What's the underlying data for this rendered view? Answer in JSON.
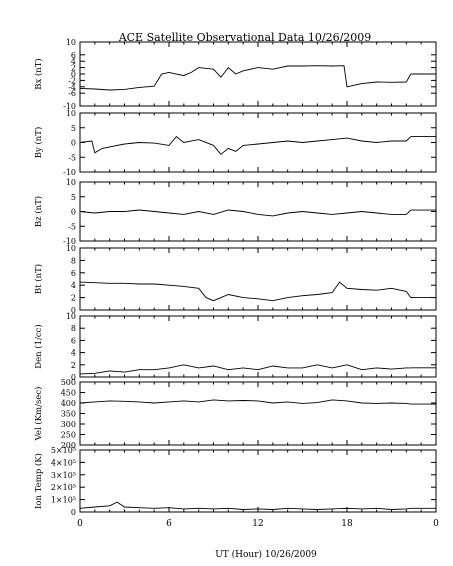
{
  "title": "ACE Satellite Observational Data   10/26/2009",
  "xlabel": "UT (Hour)   10/26/2009",
  "chart_data": {
    "type": "line",
    "title": "ACE Satellite Observational Data   10/26/2009",
    "xlabel": "UT (Hour)   10/26/2009",
    "x_ticks": [
      "0",
      "6",
      "12",
      "18",
      "0"
    ],
    "x_range": [
      0,
      24
    ],
    "data_end_hour": 22.3,
    "line_color": "#000000",
    "panels": [
      {
        "ylabel": "Bx (nT)",
        "ylim": [
          -10,
          10
        ],
        "ticks": [
          "-10",
          "-6",
          "-4",
          "-2",
          "0",
          "2",
          "4",
          "6",
          "10"
        ],
        "tick_values": [
          -10,
          -6,
          -4,
          -2,
          0,
          2,
          4,
          6,
          10
        ],
        "hours": [
          0,
          1,
          2,
          3,
          4,
          5,
          5.5,
          6,
          7,
          7.5,
          8,
          9,
          9.5,
          10,
          10.5,
          11,
          12,
          13,
          14,
          15,
          16,
          17,
          17.8,
          18,
          19,
          20,
          21,
          22,
          22.3
        ],
        "values": [
          -4.5,
          -4.7,
          -5,
          -4.8,
          -4.2,
          -3.8,
          0,
          0.5,
          -0.5,
          0.5,
          2,
          1.5,
          -1,
          2,
          0,
          1,
          2,
          1.5,
          2.5,
          2.5,
          2.6,
          2.5,
          2.6,
          -4,
          -3,
          -2.5,
          -2.6,
          -2.5,
          0
        ]
      },
      {
        "ylabel": "By (nT)",
        "ylim": [
          -10,
          10
        ],
        "ticks": [
          "-10",
          "-5",
          "0",
          "5",
          "10"
        ],
        "tick_values": [
          -10,
          -5,
          0,
          5,
          10
        ],
        "hours": [
          0,
          0.8,
          1,
          1.5,
          2,
          3,
          4,
          5,
          6,
          6.5,
          7,
          8,
          9,
          9.5,
          10,
          10.5,
          11,
          12,
          13,
          14,
          15,
          16,
          17,
          18,
          19,
          20,
          21,
          22,
          22.3
        ],
        "values": [
          0,
          0.5,
          -3.5,
          -2,
          -1.5,
          -0.5,
          0,
          -0.2,
          -1,
          2,
          0,
          1,
          -1,
          -4,
          -2,
          -3,
          -1,
          -0.5,
          0,
          0.5,
          0,
          0.5,
          1,
          1.5,
          0.5,
          0,
          0.5,
          0.5,
          2
        ]
      },
      {
        "ylabel": "Bz (nT)",
        "ylim": [
          -10,
          10
        ],
        "ticks": [
          "-10",
          "-5",
          "0",
          "5",
          "10"
        ],
        "tick_values": [
          -10,
          -5,
          0,
          5,
          10
        ],
        "hours": [
          0,
          1,
          2,
          3,
          4,
          5,
          6,
          7,
          8,
          9,
          10,
          11,
          12,
          13,
          14,
          15,
          16,
          17,
          18,
          19,
          20,
          21,
          22,
          22.3
        ],
        "values": [
          0,
          -0.5,
          0,
          0,
          0.5,
          0,
          -0.5,
          -1,
          0,
          -1,
          0.5,
          0,
          -1,
          -1.5,
          -0.5,
          0,
          -0.5,
          -1,
          -0.5,
          0,
          -0.5,
          -1,
          -1,
          0.5
        ]
      },
      {
        "ylabel": "Bt (nT)",
        "ylim": [
          0,
          10
        ],
        "ticks": [
          "0",
          "2",
          "4",
          "6",
          "8",
          "10"
        ],
        "tick_values": [
          0,
          2,
          4,
          6,
          8,
          10
        ],
        "hours": [
          0,
          1,
          2,
          3,
          4,
          5,
          6,
          7,
          8,
          8.5,
          9,
          10,
          11,
          12,
          13,
          14,
          15,
          16,
          17,
          17.5,
          18,
          19,
          20,
          21,
          22,
          22.3
        ],
        "values": [
          4.5,
          4.4,
          4.3,
          4.3,
          4.2,
          4.2,
          4,
          3.8,
          3.5,
          2,
          1.5,
          2.5,
          2,
          1.8,
          1.5,
          2,
          2.3,
          2.5,
          2.8,
          4.5,
          3.5,
          3.3,
          3.2,
          3.5,
          3,
          2
        ]
      },
      {
        "ylabel": "Den (1/cc)",
        "ylim": [
          0,
          10
        ],
        "ticks": [
          "0",
          "2",
          "4",
          "6",
          "8",
          "10"
        ],
        "tick_values": [
          0,
          2,
          4,
          6,
          8,
          10
        ],
        "hours": [
          0,
          1,
          2,
          3,
          4,
          5,
          6,
          7,
          8,
          9,
          10,
          11,
          12,
          13,
          14,
          15,
          16,
          17,
          18,
          19,
          20,
          21,
          22,
          22.3
        ],
        "values": [
          0.5,
          0.6,
          1,
          0.8,
          1.2,
          1.2,
          1.5,
          2,
          1.5,
          1.8,
          1.2,
          1.5,
          1.2,
          1.8,
          1.5,
          1.5,
          2,
          1.5,
          2,
          1.2,
          1.5,
          1.3,
          1.5,
          1.5
        ]
      },
      {
        "ylabel": "Vel (Km/sec)",
        "ylim": [
          200,
          500
        ],
        "ticks": [
          "200",
          "250",
          "300",
          "350",
          "400",
          "450",
          "500"
        ],
        "tick_values": [
          200,
          250,
          300,
          350,
          400,
          450,
          500
        ],
        "hours": [
          0,
          1,
          2,
          3,
          4,
          5,
          6,
          7,
          8,
          9,
          10,
          11,
          12,
          13,
          14,
          15,
          16,
          17,
          18,
          19,
          20,
          21,
          22,
          22.3
        ],
        "values": [
          400,
          405,
          410,
          408,
          405,
          400,
          405,
          410,
          405,
          415,
          410,
          412,
          410,
          400,
          405,
          398,
          402,
          415,
          410,
          400,
          398,
          400,
          398,
          395
        ]
      },
      {
        "ylabel": "Ion Temp (K)",
        "ylim": [
          0,
          500000
        ],
        "ticks": [
          "0",
          "1×10⁵",
          "2×10⁵",
          "3×10⁵",
          "4×10⁵",
          "5×10⁵"
        ],
        "tick_values": [
          0,
          100000,
          200000,
          300000,
          400000,
          500000
        ],
        "hours": [
          0,
          1,
          2,
          2.5,
          3,
          4,
          5,
          6,
          7,
          8,
          9,
          10,
          11,
          12,
          13,
          14,
          15,
          16,
          17,
          18,
          19,
          20,
          21,
          22,
          22.3
        ],
        "values": [
          30000,
          40000,
          50000,
          80000,
          40000,
          35000,
          30000,
          35000,
          25000,
          30000,
          25000,
          30000,
          20000,
          25000,
          20000,
          30000,
          25000,
          20000,
          25000,
          30000,
          25000,
          30000,
          20000,
          25000,
          30000
        ]
      }
    ]
  }
}
